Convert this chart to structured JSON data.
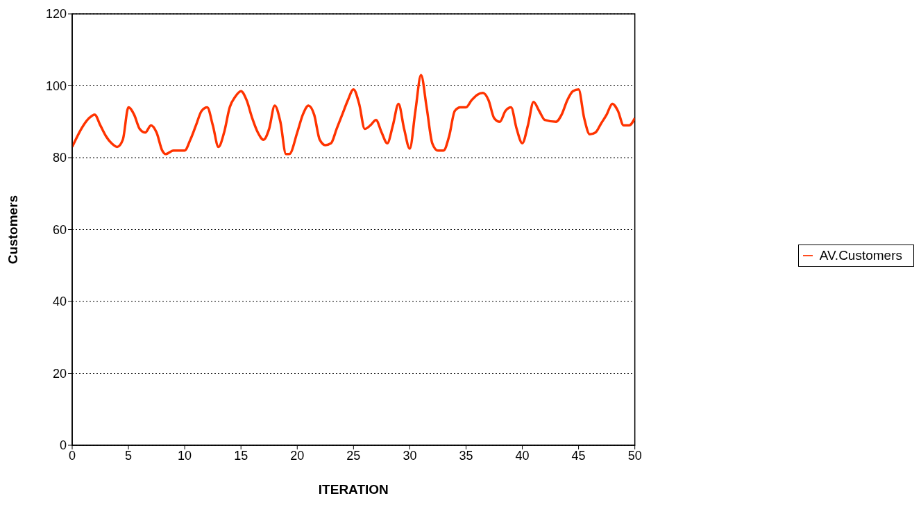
{
  "chart_data": {
    "type": "line",
    "xlabel": "ITERATION",
    "ylabel": "Customers",
    "x": [
      0,
      1,
      1.5,
      2,
      2.5,
      3,
      3.5,
      4,
      4.5,
      5,
      5.5,
      6,
      6.5,
      7,
      7.5,
      8,
      8.3,
      9,
      10,
      10.5,
      11,
      11.5,
      12,
      12.5,
      13,
      13.5,
      14,
      14.5,
      15,
      15.5,
      16,
      16.5,
      17,
      17.5,
      18,
      18.5,
      19,
      19.3,
      20,
      20.5,
      21,
      21.5,
      22,
      22.5,
      23,
      23.5,
      24,
      24.5,
      25,
      25.5,
      26,
      26.5,
      27,
      27.5,
      28,
      28.5,
      29,
      29.5,
      30,
      30.5,
      31,
      31.5,
      32,
      32.5,
      33,
      33.5,
      34,
      34.5,
      35,
      35.5,
      36,
      36.5,
      37,
      37.5,
      38,
      38.5,
      39,
      39.5,
      40,
      40.5,
      41,
      41.5,
      42,
      43,
      43.5,
      44,
      44.5,
      45,
      45.5,
      46,
      46.5,
      47,
      47.5,
      48,
      48.5,
      49,
      49.5,
      50
    ],
    "series": [
      {
        "name": "AV.Customers",
        "color": "#ff3300",
        "values": [
          83,
          89,
          91,
          92,
          89,
          86,
          84,
          83,
          85,
          94,
          92,
          88,
          87,
          89,
          87,
          82,
          81,
          82,
          82,
          85,
          89,
          93,
          94,
          89,
          83,
          87,
          94,
          97,
          98.5,
          96,
          91,
          87,
          85,
          88,
          94.5,
          90,
          81,
          81,
          87,
          92,
          94.5,
          92,
          85,
          83.5,
          84,
          88,
          92,
          96,
          99,
          95,
          88,
          89,
          90.5,
          87,
          84,
          89,
          95,
          88,
          82.5,
          93,
          103,
          94,
          84,
          82,
          82,
          86,
          93,
          94,
          94,
          96,
          97.5,
          98,
          96,
          91,
          90,
          93,
          94,
          88,
          84,
          89,
          95.5,
          93,
          90.5,
          90,
          92,
          96,
          98.5,
          99,
          91,
          86.5,
          87,
          89.5,
          92,
          95,
          93,
          89,
          89,
          91
        ]
      }
    ],
    "xlim": [
      0,
      50
    ],
    "xticks": [
      0,
      5,
      10,
      15,
      20,
      25,
      30,
      35,
      40,
      45,
      50
    ],
    "ylim": [
      0,
      120
    ],
    "yticks": [
      0,
      20,
      40,
      60,
      80,
      100,
      120
    ],
    "grid": "y",
    "legend": "right",
    "marker": "none",
    "line_style": "solid"
  }
}
